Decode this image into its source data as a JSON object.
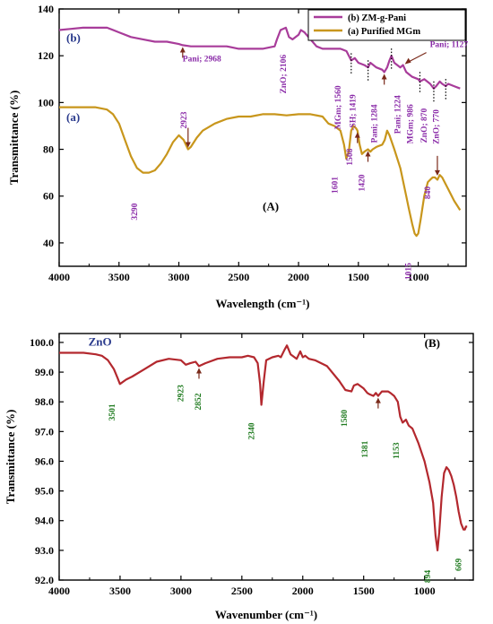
{
  "chart_data": [
    {
      "type": "line",
      "panel_label": "(A)",
      "xlabel": "Wavelength (cm⁻¹)",
      "ylabel": "Transmittance (%)",
      "xlim": [
        4000,
        600
      ],
      "ylim": [
        30,
        140
      ],
      "xticks": [
        4000,
        3500,
        3000,
        2500,
        2000,
        1500,
        1000
      ],
      "yticks": [
        40,
        60,
        80,
        100,
        120,
        140
      ],
      "legend": {
        "position": "top-right",
        "entries": [
          {
            "label": "(b) ZM-g-Pani",
            "color": "#a83c9a"
          },
          {
            "label": "(a) Purified MGm",
            "color": "#c8961c"
          }
        ]
      },
      "series": [
        {
          "name": "(b) ZM-g-Pani",
          "curve_label": "(b)",
          "color": "#a83c9a",
          "label_color": "#2a3a8c",
          "x": [
            4000,
            3900,
            3800,
            3700,
            3600,
            3500,
            3400,
            3300,
            3200,
            3100,
            3000,
            2968,
            2900,
            2800,
            2700,
            2600,
            2500,
            2400,
            2300,
            2200,
            2180,
            2150,
            2106,
            2080,
            2050,
            2000,
            1980,
            1950,
            1900,
            1850,
            1800,
            1700,
            1650,
            1600,
            1560,
            1530,
            1500,
            1450,
            1419,
            1400,
            1350,
            1300,
            1284,
            1260,
            1240,
            1224,
            1200,
            1150,
            1127,
            1100,
            1050,
            1000,
            986,
            950,
            900,
            870,
            850,
            820,
            800,
            770,
            750,
            700,
            650
          ],
          "y": [
            131,
            131.5,
            132,
            132,
            132,
            130,
            128,
            127,
            126,
            126,
            125,
            124.5,
            124,
            124,
            124,
            124,
            123,
            123,
            123,
            124,
            127,
            131,
            132,
            128,
            127,
            129,
            131,
            130,
            127,
            124,
            123,
            123,
            123,
            122,
            118,
            119,
            117,
            116,
            115,
            117,
            115,
            114,
            113,
            115,
            118,
            120,
            117,
            115,
            116,
            113,
            111,
            110,
            109,
            110,
            108,
            106,
            107,
            109,
            108,
            107,
            108,
            107,
            106
          ]
        },
        {
          "name": "(a) Purified MGm",
          "curve_label": "(a)",
          "color": "#c8961c",
          "label_color": "#2a3a8c",
          "x": [
            4000,
            3900,
            3800,
            3700,
            3600,
            3550,
            3500,
            3450,
            3400,
            3350,
            3300,
            3250,
            3200,
            3150,
            3100,
            3050,
            3000,
            2960,
            2923,
            2900,
            2850,
            2800,
            2700,
            2600,
            2500,
            2400,
            2300,
            2200,
            2100,
            2000,
            1900,
            1800,
            1750,
            1700,
            1650,
            1620,
            1601,
            1580,
            1560,
            1540,
            1520,
            1508,
            1490,
            1470,
            1450,
            1420,
            1400,
            1380,
            1350,
            1300,
            1280,
            1260,
            1240,
            1200,
            1150,
            1100,
            1080,
            1050,
            1030,
            1015,
            1000,
            980,
            950,
            920,
            900,
            880,
            860,
            840,
            820,
            800,
            780,
            750,
            700,
            650
          ],
          "y": [
            98,
            98,
            98,
            98,
            97,
            95,
            91,
            84,
            77,
            72,
            70,
            70,
            71,
            74,
            78,
            83,
            86,
            84,
            80,
            81,
            85,
            88,
            91,
            93,
            94,
            94,
            95,
            95,
            94.5,
            95,
            95,
            94,
            91,
            90,
            88,
            82,
            76,
            79,
            88,
            90,
            89,
            88,
            82,
            78,
            79,
            80,
            79,
            80,
            81,
            82,
            84,
            88,
            86,
            80,
            72,
            60,
            55,
            48,
            44,
            43,
            44,
            50,
            60,
            66,
            67,
            68,
            68,
            67,
            69,
            68,
            66,
            63,
            58,
            54
          ]
        }
      ],
      "annotations": [
        {
          "text": "Pani; 2968",
          "color": "#8a2ba8"
        },
        {
          "text": "ZnO; 2106",
          "color": "#8a2ba8"
        },
        {
          "text": "MGm; 1560",
          "color": "#8a2ba8"
        },
        {
          "text": "-SH; 1419",
          "color": "#8a2ba8"
        },
        {
          "text": "Pani; 1284",
          "color": "#8a2ba8"
        },
        {
          "text": "Pani; 1224",
          "color": "#8a2ba8"
        },
        {
          "text": "Pani; 1127",
          "color": "#8a2ba8"
        },
        {
          "text": "MGm; 986",
          "color": "#8a2ba8"
        },
        {
          "text": "ZnO; 870",
          "color": "#8a2ba8"
        },
        {
          "text": "ZnO; 770",
          "color": "#8a2ba8"
        },
        {
          "text": "2923",
          "color": "#8a2ba8"
        },
        {
          "text": "3290",
          "color": "#8a2ba8"
        },
        {
          "text": "1601",
          "color": "#8a2ba8"
        },
        {
          "text": "1508",
          "color": "#8a2ba8"
        },
        {
          "text": "1420",
          "color": "#8a2ba8"
        },
        {
          "text": "1015",
          "color": "#8a2ba8"
        },
        {
          "text": "840",
          "color": "#8a2ba8"
        }
      ]
    },
    {
      "type": "line",
      "panel_label": "(B)",
      "xlabel": "Wavenumber (cm⁻¹)",
      "ylabel": "Transmittance (%)",
      "xlim": [
        4000,
        600
      ],
      "ylim": [
        92,
        100.3
      ],
      "xticks": [
        4000,
        3500,
        3000,
        2500,
        2000,
        1500,
        1000
      ],
      "yticks": [
        92,
        93,
        94,
        95,
        96,
        97,
        98,
        99,
        100
      ],
      "series": [
        {
          "name": "ZnO",
          "curve_label": "ZnO",
          "color": "#b3282e",
          "label_color": "#2a3a8c",
          "x": [
            4000,
            3900,
            3800,
            3700,
            3650,
            3600,
            3550,
            3520,
            3501,
            3450,
            3400,
            3300,
            3200,
            3100,
            3000,
            2960,
            2923,
            2880,
            2852,
            2800,
            2700,
            2600,
            2500,
            2450,
            2400,
            2370,
            2350,
            2340,
            2320,
            2300,
            2250,
            2200,
            2180,
            2150,
            2130,
            2100,
            2050,
            2020,
            2000,
            1980,
            1950,
            1900,
            1800,
            1700,
            1650,
            1600,
            1580,
            1550,
            1500,
            1470,
            1450,
            1420,
            1400,
            1381,
            1350,
            1300,
            1280,
            1250,
            1220,
            1200,
            1180,
            1153,
            1130,
            1100,
            1050,
            1000,
            960,
            930,
            910,
            894,
            880,
            860,
            840,
            820,
            800,
            780,
            760,
            740,
            720,
            700,
            690,
            680,
            669,
            660,
            650
          ],
          "y": [
            99.65,
            99.65,
            99.65,
            99.6,
            99.55,
            99.4,
            99.1,
            98.8,
            98.6,
            98.75,
            98.85,
            99.1,
            99.35,
            99.45,
            99.4,
            99.25,
            99.3,
            99.35,
            99.2,
            99.3,
            99.45,
            99.5,
            99.5,
            99.55,
            99.5,
            99.3,
            98.6,
            97.9,
            98.7,
            99.4,
            99.5,
            99.55,
            99.5,
            99.75,
            99.9,
            99.6,
            99.45,
            99.7,
            99.5,
            99.55,
            99.45,
            99.4,
            99.2,
            98.7,
            98.4,
            98.35,
            98.55,
            98.6,
            98.45,
            98.3,
            98.25,
            98.2,
            98.3,
            98.2,
            98.35,
            98.35,
            98.3,
            98.2,
            98.0,
            97.5,
            97.3,
            97.4,
            97.2,
            97.1,
            96.6,
            96.0,
            95.3,
            94.6,
            93.5,
            93.0,
            93.6,
            94.8,
            95.6,
            95.8,
            95.7,
            95.5,
            95.2,
            94.8,
            94.3,
            93.9,
            93.8,
            93.7,
            93.7,
            93.8,
            93.8
          ]
        }
      ],
      "annotations": [
        {
          "text": "3501",
          "color": "#1e7a1e"
        },
        {
          "text": "2923",
          "color": "#1e7a1e"
        },
        {
          "text": "2852",
          "color": "#1e7a1e"
        },
        {
          "text": "2340",
          "color": "#1e7a1e"
        },
        {
          "text": "1580",
          "color": "#1e7a1e"
        },
        {
          "text": "1381",
          "color": "#1e7a1e"
        },
        {
          "text": "1153",
          "color": "#1e7a1e"
        },
        {
          "text": "894",
          "color": "#1e7a1e"
        },
        {
          "text": "669",
          "color": "#1e7a1e"
        }
      ]
    }
  ]
}
